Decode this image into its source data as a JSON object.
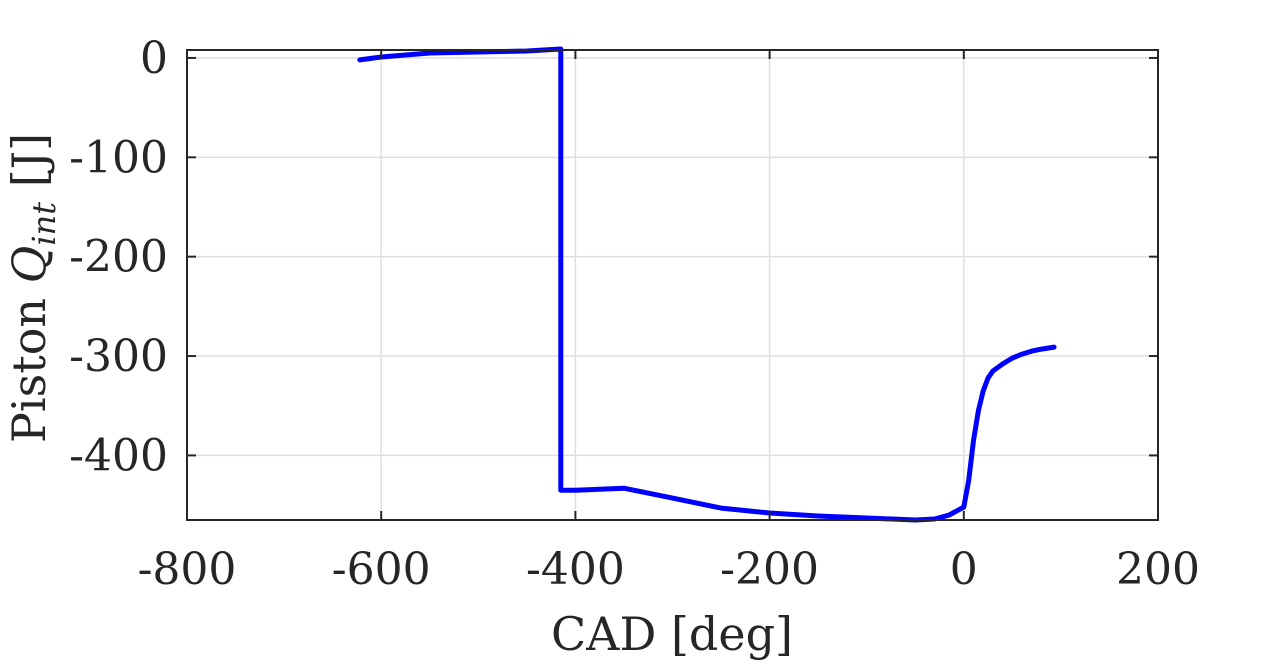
{
  "chart_data": {
    "type": "line",
    "title": "",
    "xlabel": "CAD [deg]",
    "ylabel_prefix": "Piston ",
    "ylabel_symbol": "Q",
    "ylabel_subscript": "int",
    "ylabel_suffix": " [J]",
    "xlim": [
      -800,
      200
    ],
    "ylim": [
      -465,
      8
    ],
    "xticks": [
      -800,
      -600,
      -400,
      -200,
      0,
      200
    ],
    "yticks": [
      0,
      -100,
      -200,
      -300,
      -400
    ],
    "xtick_labels": [
      "-800",
      "-600",
      "-400",
      "-200",
      "0",
      "200"
    ],
    "ytick_labels": [
      "0",
      "-100",
      "-200",
      "-300",
      "-400"
    ],
    "grid": true,
    "series": [
      {
        "color": "#0000ff",
        "x": [
          -622,
          -600,
          -550,
          -500,
          -450,
          -415,
          -415,
          -400,
          -350,
          -300,
          -250,
          -200,
          -150,
          -100,
          -50,
          -30,
          -15,
          0,
          5,
          10,
          15,
          20,
          25,
          30,
          40,
          50,
          60,
          70,
          80,
          93
        ],
        "y": [
          -2,
          1,
          5,
          6,
          7,
          9,
          -435,
          -435,
          -433,
          -443,
          -453,
          -458,
          -461,
          -463,
          -465,
          -464,
          -460,
          -452,
          -425,
          -385,
          -355,
          -335,
          -322,
          -315,
          -308,
          -302,
          -298,
          -295,
          -293,
          -291
        ]
      }
    ]
  }
}
